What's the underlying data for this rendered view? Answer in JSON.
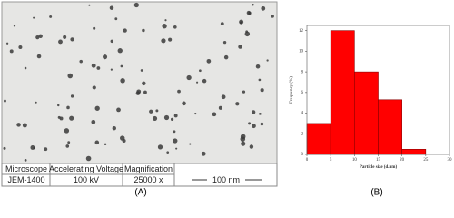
{
  "micrograph": {
    "panel_label": "(A)",
    "table": {
      "header": [
        "Microscope",
        "Accelerating Voltage",
        "Magnification"
      ],
      "row": [
        "JEM-1400",
        "100 kV",
        "25000 x"
      ]
    },
    "scale_bar": "100 nm"
  },
  "chart_data": {
    "type": "histogram",
    "panel_label": "(B)",
    "xlabel": "Particle size (d.nm)",
    "ylabel": "Frequency (%)",
    "bins": [
      0,
      5,
      10,
      15,
      20,
      25
    ],
    "values": [
      3,
      12,
      8,
      5.3,
      0.5
    ],
    "color": "#ff0000",
    "xlim": [
      0,
      30
    ],
    "xticks": [
      0,
      5,
      10,
      15,
      20,
      25,
      30
    ],
    "ylim": [
      0,
      12.5
    ],
    "yticks": [
      0,
      2,
      4,
      6,
      8,
      10,
      12
    ]
  }
}
